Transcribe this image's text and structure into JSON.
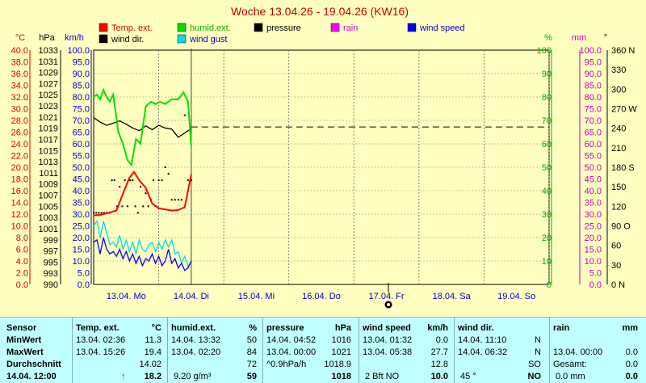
{
  "title": "Woche 13.04.26 - 19.04.26 (KW16)",
  "legend": [
    {
      "label": "Temp. ext.",
      "color": "#FF0000"
    },
    {
      "label": "humid.ext.",
      "color": "#00E000"
    },
    {
      "label": "pressure",
      "color": "#000000"
    },
    {
      "label": "rain",
      "color": "#FF00FF"
    },
    {
      "label": "wind speed",
      "color": "#0000FF"
    },
    {
      "label": "wind dir.",
      "color": "#000000"
    },
    {
      "label": "wind gust",
      "color": "#00E0E0"
    }
  ],
  "axis_units": {
    "temp": "°C",
    "pressure": "hPa",
    "wind": "km/h",
    "humidity": "%",
    "rain": "mm",
    "direction": "°"
  },
  "colors": {
    "temp": "#FF0000",
    "humidity": "#00E000",
    "pressure": "#000000",
    "rain": "#FF00FF",
    "wind": "#0000FF",
    "gust": "#00E0E0",
    "dir": "#000000",
    "background": "#FFFFC0",
    "table": "#C0FFFF"
  },
  "chart_data": {
    "type": "line",
    "title": "Woche 13.04.26 - 19.04.26 (KW16)",
    "x_labels": [
      "13.04. Mo",
      "14.04. Di",
      "15.04. Mi",
      "16.04. Do",
      "17.04. Fr",
      "18.04. Sa",
      "19.04. So"
    ],
    "x_range_days": [
      0,
      7
    ],
    "axes": {
      "temp": {
        "unit": "°C",
        "range": [
          0,
          40
        ],
        "ticks": [
          "40.0",
          "38.0",
          "36.0",
          "34.0",
          "32.0",
          "30.0",
          "28.0",
          "26.0",
          "24.0",
          "22.0",
          "20.0",
          "18.0",
          "16.0",
          "14.0",
          "12.0",
          "10.0",
          "8.0",
          "6.0",
          "4.0",
          "2.0",
          "0.0"
        ]
      },
      "pressure": {
        "unit": "hPa",
        "range": [
          990,
          1033
        ],
        "ticks": [
          "1033",
          "1031",
          "1029",
          "1027",
          "1025",
          "1023",
          "1021",
          "1019",
          "1017",
          "1015",
          "1013",
          "1011",
          "1009",
          "1007",
          "1005",
          "1003",
          "1001",
          "999",
          "997",
          "995",
          "993",
          "990"
        ]
      },
      "wind": {
        "unit": "km/h",
        "range": [
          0,
          100
        ],
        "ticks": [
          "100.0",
          "95.0",
          "90.0",
          "85.0",
          "80.0",
          "75.0",
          "70.0",
          "65.0",
          "60.0",
          "55.0",
          "50.0",
          "45.0",
          "40.0",
          "35.0",
          "30.0",
          "25.0",
          "20.0",
          "15.0",
          "10.0",
          "5.0",
          "0.0"
        ]
      },
      "humidity": {
        "unit": "%",
        "range": [
          0,
          100
        ],
        "ticks": [
          "100",
          "90",
          "80",
          "70",
          "60",
          "50",
          "40",
          "30",
          "20",
          "10",
          "0"
        ]
      },
      "rain": {
        "unit": "mm",
        "range": [
          0,
          100
        ],
        "ticks": [
          "100.0",
          "95.0",
          "90.0",
          "85.0",
          "80.0",
          "75.0",
          "70.0",
          "65.0",
          "60.0",
          "55.0",
          "50.0",
          "45.0",
          "40.0",
          "35.0",
          "30.0",
          "25.0",
          "20.0",
          "15.0",
          "10.0",
          "5.0",
          "0.0"
        ]
      },
      "direction": {
        "unit": "°",
        "range": [
          0,
          360
        ],
        "ticks": [
          "360 N",
          "330",
          "300",
          "270 W",
          "240",
          "210",
          "180 S",
          "150",
          "120",
          "90 O",
          "60",
          "30",
          "0   N"
        ]
      }
    },
    "series": [
      {
        "name": "Temp. ext.",
        "axis": "temp",
        "x": [
          0,
          0.12,
          0.25,
          0.35,
          0.45,
          0.55,
          0.62,
          0.7,
          0.8,
          0.9,
          1.0,
          1.1,
          1.2,
          1.3,
          1.4,
          1.5
        ],
        "y": [
          11.8,
          11.9,
          12.3,
          12.6,
          15.5,
          18.2,
          19.2,
          17.8,
          16.5,
          13.8,
          13.0,
          12.8,
          12.6,
          12.7,
          13.2,
          18.8
        ]
      },
      {
        "name": "humid.ext.",
        "axis": "humidity",
        "x": [
          0,
          0.05,
          0.1,
          0.15,
          0.2,
          0.25,
          0.3,
          0.38,
          0.45,
          0.52,
          0.58,
          0.65,
          0.72,
          0.8,
          0.88,
          0.95,
          1.02,
          1.1,
          1.2,
          1.3,
          1.38,
          1.45,
          1.5
        ],
        "y": [
          80,
          81,
          79,
          83,
          80,
          78,
          81,
          65,
          60,
          53,
          51,
          62,
          60,
          76,
          78,
          77,
          78,
          77,
          79,
          79,
          82,
          78,
          59
        ]
      },
      {
        "name": "pressure",
        "axis": "pressure",
        "x": [
          0,
          0.1,
          0.2,
          0.3,
          0.4,
          0.5,
          0.6,
          0.7,
          0.8,
          0.9,
          1.0,
          1.1,
          1.2,
          1.3,
          1.4,
          1.5
        ],
        "y": [
          1020.6,
          1019.8,
          1019.2,
          1019.6,
          1020.0,
          1019.4,
          1018.7,
          1018.2,
          1019.1,
          1018.4,
          1019.2,
          1018.7,
          1018.5,
          1017.0,
          1017.8,
          1018.6
        ]
      },
      {
        "name": "wind speed",
        "axis": "wind",
        "x": [
          0,
          0.05,
          0.1,
          0.15,
          0.2,
          0.25,
          0.3,
          0.35,
          0.4,
          0.45,
          0.5,
          0.55,
          0.6,
          0.65,
          0.7,
          0.75,
          0.8,
          0.85,
          0.9,
          0.95,
          1.0,
          1.05,
          1.1,
          1.15,
          1.2,
          1.25,
          1.3,
          1.35,
          1.4,
          1.45,
          1.5
        ],
        "y": [
          18,
          19,
          13,
          20,
          15,
          13,
          14,
          12,
          15,
          11,
          14,
          10,
          13,
          9,
          12,
          8,
          11,
          10,
          13,
          9,
          12,
          8,
          10,
          15,
          9,
          11,
          7,
          9,
          6,
          7,
          10
        ]
      },
      {
        "name": "wind gust",
        "axis": "wind",
        "x": [
          0,
          0.05,
          0.1,
          0.15,
          0.2,
          0.25,
          0.3,
          0.35,
          0.4,
          0.45,
          0.5,
          0.55,
          0.6,
          0.65,
          0.7,
          0.75,
          0.8,
          0.85,
          0.9,
          0.95,
          1.0,
          1.05,
          1.1,
          1.15,
          1.2,
          1.25,
          1.3,
          1.35,
          1.4,
          1.45,
          1.5
        ],
        "y": [
          25,
          27,
          20,
          27,
          22,
          17,
          18,
          16,
          21,
          15,
          19,
          14,
          18,
          13,
          19,
          15,
          14,
          17,
          18,
          14,
          18,
          15,
          19,
          16,
          19,
          13,
          14,
          9,
          12,
          8,
          9
        ]
      },
      {
        "name": "wind dir.",
        "axis": "direction",
        "type": "dots",
        "x": [
          0,
          0.04,
          0.08,
          0.12,
          0.16,
          0.2,
          0.24,
          0.28,
          0.32,
          0.36,
          0.4,
          0.44,
          0.48,
          0.52,
          0.56,
          0.6,
          0.64,
          0.68,
          0.72,
          0.76,
          0.8,
          0.84,
          0.88,
          0.92,
          0.96,
          1.0,
          1.05,
          1.1,
          1.15,
          1.2,
          1.25,
          1.3,
          1.35,
          1.4,
          1.45,
          1.5
        ],
        "y": [
          110,
          110,
          110,
          110,
          110,
          110,
          110,
          160,
          160,
          120,
          150,
          120,
          160,
          120,
          160,
          160,
          120,
          110,
          150,
          120,
          140,
          120,
          130,
          160,
          120,
          160,
          160,
          180,
          170,
          130,
          130,
          130,
          130,
          260,
          160,
          160
        ]
      }
    ],
    "forecast_pressure": 1018.9
  },
  "table": {
    "headers": {
      "sensor": "Sensor",
      "temp": "Temp. ext.",
      "temp_unit": "°C",
      "humid": "humid.ext.",
      "humid_unit": "%",
      "pressure": "pressure",
      "pressure_unit": "hPa",
      "wind_speed": "wind speed",
      "wind_speed_unit": "km/h",
      "wind_dir": "wind dir.",
      "rain": "rain",
      "rain_unit": "mm"
    },
    "rows": [
      {
        "label": "MinWert",
        "temp_time": "13.04.  02:36",
        "temp_val": "11.3",
        "humid_time": "14.04.  13:32",
        "humid_val": "50",
        "press_time": "14.04.  04:52",
        "press_val": "1016",
        "ws_time": "13.04.  01:32",
        "ws_val": "0.0",
        "wd_time": "14.04.  11:10",
        "wd_val": "N",
        "rain_time": "",
        "rain_val": ""
      },
      {
        "label": "MaxWert",
        "temp_time": "13.04.  15:26",
        "temp_val": "19.4",
        "humid_time": "13.04.  02:20",
        "humid_val": "84",
        "press_time": "13.04.  00:00",
        "press_val": "1021",
        "ws_time": "13.04.  05:38",
        "ws_val": "27.7",
        "wd_time": "14.04.  06:32",
        "wd_val": "N",
        "rain_time": "13.04.  00:00",
        "rain_val": "0.0"
      },
      {
        "label": "Durchschnitt",
        "temp_time": "",
        "temp_val": "14.02",
        "humid_time": "",
        "humid_val": "72",
        "press_time": "^0.9hPa/h",
        "press_val": "1018.9",
        "ws_time": "",
        "ws_val": "12.8",
        "wd_time": "",
        "wd_val": "SO",
        "rain_time": "Gesamt:",
        "rain_val": "0.0"
      },
      {
        "label": "14.04.  12:00",
        "temp_time": "↑",
        "temp_val": "18.2",
        "humid_time": "9.20 g/m³",
        "humid_val": "59",
        "press_time": "",
        "press_val": "1018",
        "ws_time": "2 Bft NO",
        "ws_val": "10.0",
        "wd_time": "45 °",
        "wd_val": "NO",
        "rain_time": "0.0 mm",
        "rain_val": "0.0"
      }
    ]
  }
}
